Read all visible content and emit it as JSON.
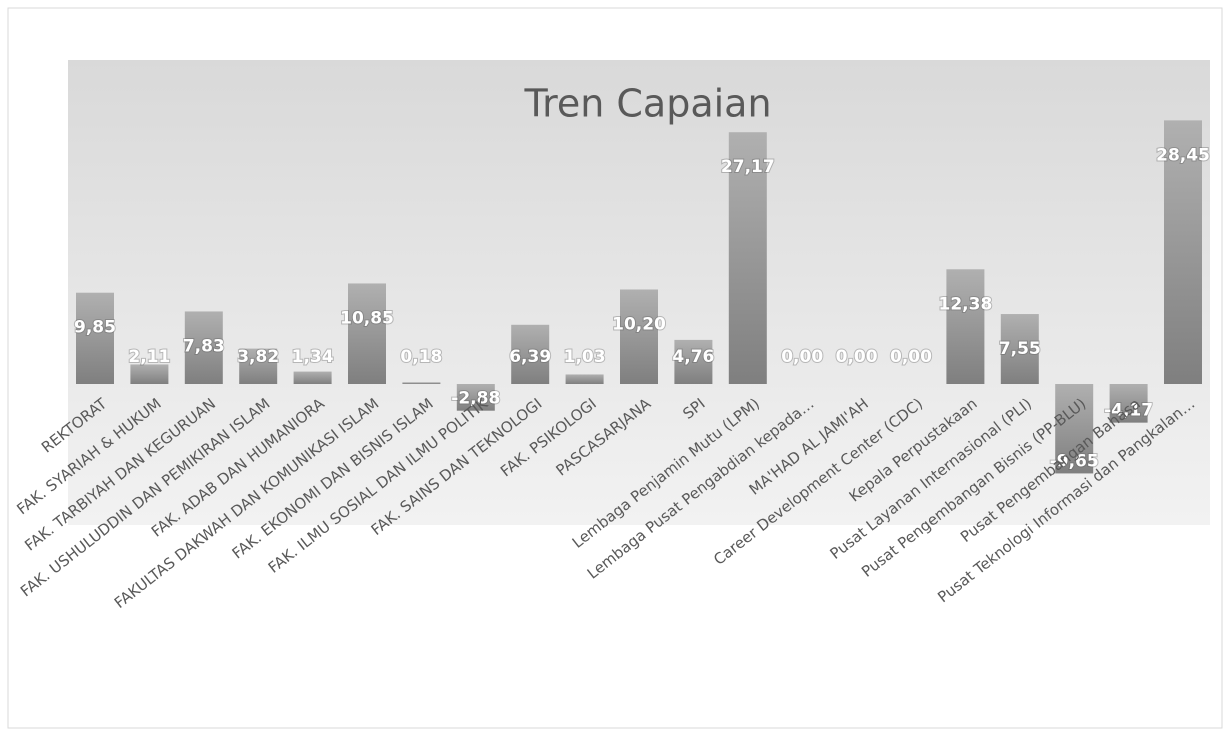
{
  "chart_data": {
    "type": "bar",
    "title": "Tren Capaian",
    "categories": [
      "REKTORAT",
      "FAK. SYARIAH & HUKUM",
      "FAK. TARBIYAH DAN KEGURUAN",
      "FAK. USHULUDDIN DAN PEMIKIRAN ISLAM",
      "FAK. ADAB DAN HUMANIORA",
      "FAKULTAS DAKWAH DAN KOMUNIKASI ISLAM",
      "FAK. EKONOMI DAN BISNIS ISLAM",
      "FAK. ILMU SOSIAL DAN ILMU POLITIK",
      "FAK. SAINS DAN TEKNOLOGI",
      "FAK. PSIKOLOGI",
      "PASCASARJANA",
      "SPI",
      "Lembaga Penjamin Mutu (LPM)",
      "Lembaga Pusat Pengabdian kepada…",
      "MA'HAD AL JAMI'AH",
      "Career Development Center (CDC)",
      "Kepala Perpustakaan",
      "Pusat Layanan Internasional (PLI)",
      "Pusat Pengembangan Bisnis (PP-BLU)",
      "Pusat Pengembangan Bahasa",
      "Pusat Teknologi Informasi dan Pangkalan…"
    ],
    "values": [
      9.85,
      2.11,
      7.83,
      3.82,
      1.34,
      10.85,
      0.18,
      -2.88,
      6.39,
      1.03,
      10.2,
      4.76,
      27.17,
      0,
      0,
      0,
      12.38,
      7.55,
      -9.65,
      -4.17,
      28.45
    ],
    "value_labels": [
      "9,85",
      "2,11",
      "7,83",
      "3,82",
      "1,34",
      "10,85",
      "0,18",
      "-2,88",
      "6,39",
      "1,03",
      "10,20",
      "4,76",
      "27,17",
      "0,00",
      "0,00",
      "0,00",
      "12,38",
      "7,55",
      "-9,65",
      "-4,17",
      "28,45"
    ],
    "color": "#999999",
    "ylim": [
      -15,
      30
    ]
  }
}
